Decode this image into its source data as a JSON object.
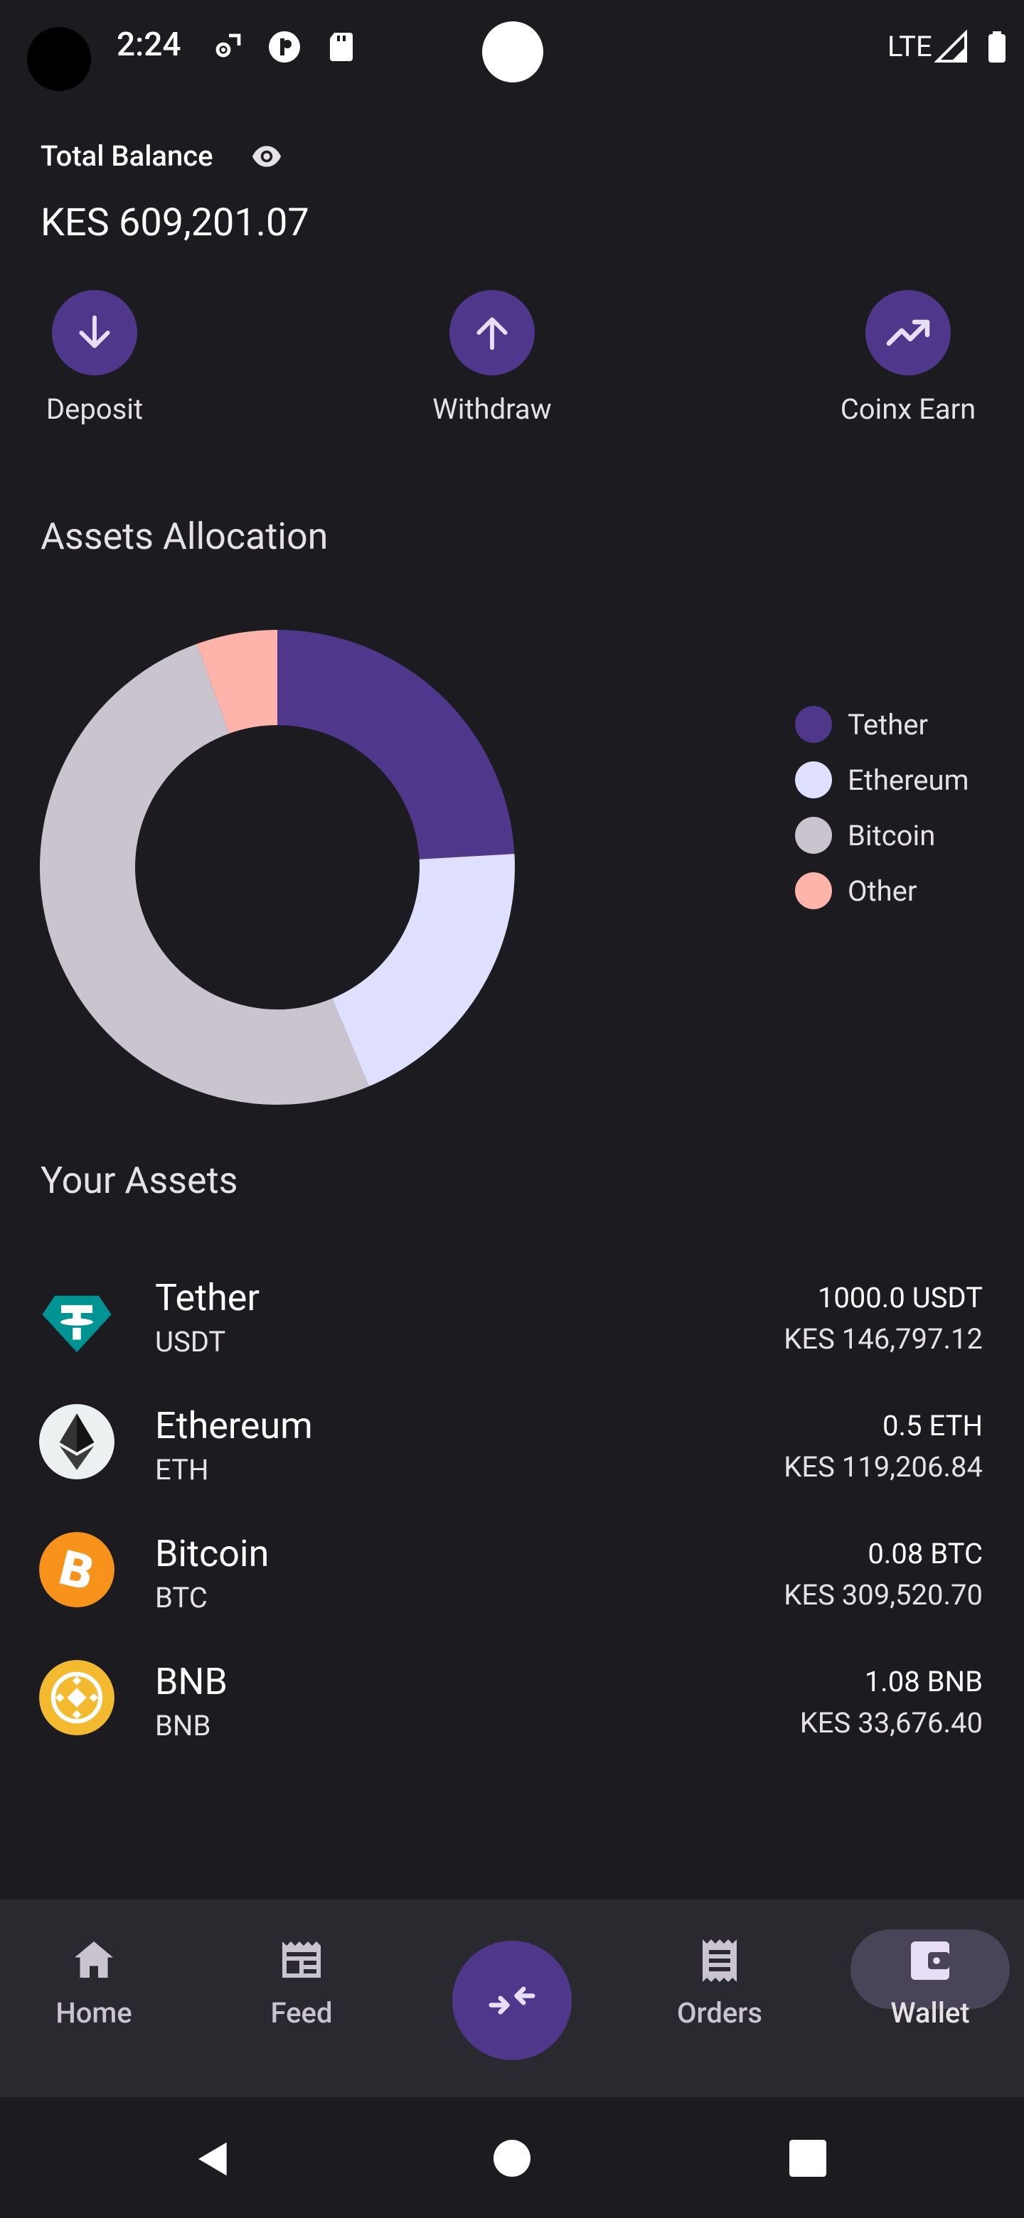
{
  "status_bar": {
    "time": "2:24",
    "network": "LTE",
    "icons": [
      "settings-sync-icon",
      "app-circle-icon",
      "sd-card-icon",
      "signal-icon",
      "battery-icon"
    ]
  },
  "balance": {
    "label": "Total Balance",
    "value": "KES 609,201.07"
  },
  "actions": [
    {
      "label": "Deposit",
      "icon": "arrow-down-icon"
    },
    {
      "label": "Withdraw",
      "icon": "arrow-up-icon"
    },
    {
      "label": "Coinx Earn",
      "icon": "trending-up-icon"
    }
  ],
  "allocation": {
    "title": "Assets Allocation"
  },
  "chart_data": {
    "type": "pie",
    "donut": true,
    "categories": [
      "Tether",
      "Ethereum",
      "Bitcoin",
      "Other"
    ],
    "values": [
      24.1,
      19.6,
      50.8,
      5.5
    ],
    "colors": [
      "#4f378b",
      "#dfe0ff",
      "#cac4cf",
      "#ffb4ab"
    ],
    "legend_position": "right"
  },
  "assets": {
    "title": "Your Assets",
    "items": [
      {
        "name": "Tether",
        "symbol": "USDT",
        "amount": "1000.0 USDT",
        "kes": "KES 146,797.12",
        "icon": "tether-icon",
        "color": "#26a17b"
      },
      {
        "name": "Ethereum",
        "symbol": "ETH",
        "amount": "0.5 ETH",
        "kes": "KES 119,206.84",
        "icon": "ethereum-icon",
        "color": "#ecf0f1"
      },
      {
        "name": "Bitcoin",
        "symbol": "BTC",
        "amount": "0.08 BTC",
        "kes": "KES 309,520.70",
        "icon": "bitcoin-icon",
        "color": "#f7931a"
      },
      {
        "name": "BNB",
        "symbol": "BNB",
        "amount": "1.08 BNB",
        "kes": "KES 33,676.40",
        "icon": "bnb-icon",
        "color": "#f3ba2f"
      }
    ]
  },
  "bottom_nav": {
    "items": [
      {
        "label": "Home",
        "icon": "home-icon"
      },
      {
        "label": "Feed",
        "icon": "feed-icon"
      },
      {
        "label": "",
        "icon": "swap-icon"
      },
      {
        "label": "Orders",
        "icon": "receipt-icon"
      },
      {
        "label": "Wallet",
        "icon": "wallet-icon",
        "active": true
      }
    ]
  },
  "colors": {
    "background": "#1c1b1f",
    "accent": "#4f378b",
    "nav_background": "#2b2930"
  }
}
